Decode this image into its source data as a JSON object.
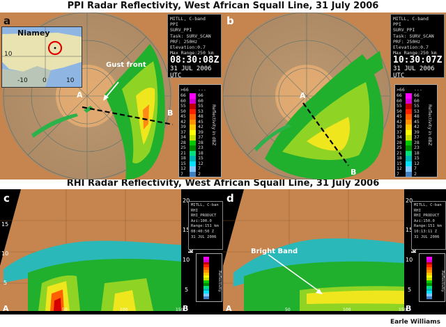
{
  "titles": {
    "ppi": "PPI Radar Reflectivity, West African Squall Line, 31 July 2006",
    "rhi": "RHI Radar Reflectivity, West African Squall Line, 31 July 2006"
  },
  "panels": {
    "a": {
      "label": "a",
      "info_lines": [
        "MITLL, C-band",
        "PPI",
        "SURV_PPI",
        "Task: SURV_SCAN",
        "PRF: 250Hz",
        "Elevation:0.7",
        "Max Range:250 km"
      ],
      "time": "08:30:08Z",
      "date": "31 JUL 2006 UTC",
      "annotation": "Gust front",
      "point_a": "A",
      "point_b": "B"
    },
    "b": {
      "label": "b",
      "info_lines": [
        "MITLL, C-band",
        "PPI",
        "SURV_PPI",
        "Task: SURV_SCAN",
        "PRF: 250Hz",
        "Elevation:0.7",
        "Max Range:250 km"
      ],
      "time": "10:30:07Z",
      "date": "31 JUL 2006 UTC",
      "point_a": "A",
      "point_b": "B"
    },
    "c": {
      "label": "c",
      "info_lines": [
        "MITLL, C-ban",
        "RHI",
        "RHI_PRODUCT",
        "Azi:100.0",
        "Range:151 km",
        "08:40:50 Z",
        "31 JUL 2006"
      ],
      "point_a": "A",
      "point_b": "B",
      "axis_unit": "km",
      "y_ticks": [
        "20",
        "15",
        "10",
        "5"
      ],
      "x_ticks": [
        "50",
        "100",
        "150"
      ]
    },
    "d": {
      "label": "d",
      "info_lines": [
        "MITLL, C-ban",
        "RHI",
        "RHI_PRODUCT",
        "Azi:150.0",
        "Range:151 km",
        "10:13:11 Z",
        "31 JUL 2006"
      ],
      "annotation": "Bright Band",
      "point_a": "A",
      "point_b": "B",
      "axis_unit": "km",
      "y_ticks": [
        "20",
        "15",
        "10",
        "5"
      ],
      "x_ticks": [
        "50",
        "100",
        "150"
      ]
    }
  },
  "inset_map": {
    "city": "Niamey",
    "lat_tick": "10",
    "lon_ticks": [
      "-10",
      "0",
      "10"
    ]
  },
  "legend": {
    "title": "Reflectivity in dBZ",
    "short_title": "Reflectivity",
    "top_label": ">66",
    "top_right": "---",
    "left": [
      "66",
      "60",
      "55",
      "50",
      "45",
      "42",
      "39",
      "37",
      "34",
      "28",
      "25",
      "21",
      "18",
      "15",
      "12",
      "7"
    ],
    "right": [
      "66",
      "60",
      "55",
      "53",
      "48",
      "45",
      "42",
      "39",
      "37",
      "28",
      "23",
      "18",
      "15",
      "12",
      "7",
      "2"
    ],
    "colors": [
      "#ff00ff",
      "#d400d4",
      "#c00000",
      "#ff2000",
      "#ff6000",
      "#ff9000",
      "#ffc800",
      "#ffff00",
      "#c8e000",
      "#00c800",
      "#008c00",
      "#00e080",
      "#00b4b4",
      "#00e0ff",
      "#80c8ff",
      "#4080c0"
    ]
  },
  "credit": "Earle Williams"
}
